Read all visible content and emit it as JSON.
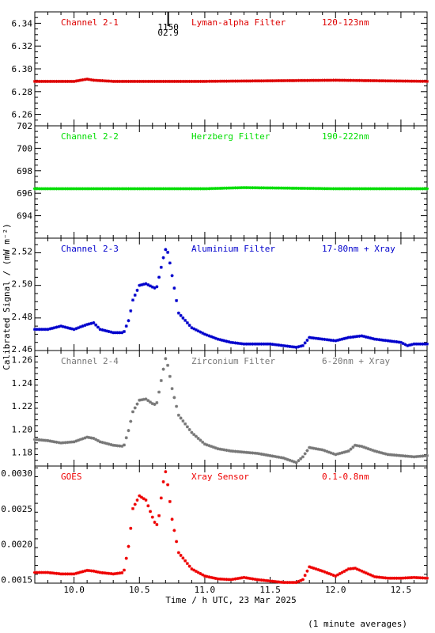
{
  "xlabel": "Time / h UTC, 23 Mar 2025",
  "ylabel": "Calibrated Signal / (mW m⁻²)",
  "footnote": "(1 minute averages)",
  "xlim": [
    9.7,
    12.7
  ],
  "x_ticks": [
    "10.0",
    "10.5",
    "11.0",
    "11.5",
    "12.0",
    "12.5"
  ],
  "marker_note": [
    "1150",
    "02.9"
  ],
  "chart_data": [
    {
      "type": "scatter",
      "color": "#dd0000",
      "labels": {
        "channel": "Channel 2-1",
        "filter": "Lyman-alpha Filter",
        "band": "120-123nm"
      },
      "ylim": [
        6.25,
        6.35
      ],
      "y_ticks": [
        "6.34",
        "6.32",
        "6.30",
        "6.28",
        "6.26"
      ],
      "y_tick_values": [
        6.34,
        6.32,
        6.3,
        6.28,
        6.26
      ],
      "x": [
        9.7,
        10.0,
        10.1,
        10.15,
        10.3,
        11.0,
        12.0,
        12.7
      ],
      "y": [
        6.289,
        6.289,
        6.291,
        6.29,
        6.289,
        6.289,
        6.29,
        6.289
      ]
    },
    {
      "type": "scatter",
      "color": "#00dd00",
      "labels": {
        "channel": "Channel 2-2",
        "filter": "Herzberg Filter",
        "band": "190-222nm"
      },
      "ylim": [
        692,
        702
      ],
      "y_ticks": [
        "702",
        "700",
        "698",
        "696",
        "694"
      ],
      "y_tick_values": [
        702,
        700,
        698,
        696,
        694
      ],
      "x": [
        9.7,
        10.5,
        11.0,
        11.3,
        12.0,
        12.5,
        12.7
      ],
      "y": [
        696.4,
        696.4,
        696.4,
        696.5,
        696.4,
        696.4,
        696.4
      ]
    },
    {
      "type": "scatter",
      "color": "#0000cc",
      "labels": {
        "channel": "Channel 2-3",
        "filter": "Aluminium Filter",
        "band": "17-80nm + Xray"
      },
      "ylim": [
        2.459,
        2.528
      ],
      "y_ticks": [
        "2.52",
        "2.50",
        "2.48",
        "2.46"
      ],
      "y_tick_values": [
        2.52,
        2.5,
        2.48,
        2.46
      ],
      "x": [
        9.7,
        9.8,
        9.9,
        10.0,
        10.1,
        10.15,
        10.2,
        10.3,
        10.38,
        10.42,
        10.45,
        10.5,
        10.55,
        10.6,
        10.63,
        10.65,
        10.68,
        10.7,
        10.72,
        10.75,
        10.8,
        10.9,
        11.0,
        11.1,
        11.2,
        11.3,
        11.4,
        11.5,
        11.6,
        11.7,
        11.75,
        11.8,
        11.9,
        12.0,
        12.1,
        12.2,
        12.3,
        12.4,
        12.5,
        12.55,
        12.6,
        12.7
      ],
      "y": [
        2.472,
        2.472,
        2.474,
        2.472,
        2.475,
        2.476,
        2.472,
        2.47,
        2.47,
        2.478,
        2.49,
        2.499,
        2.5,
        2.498,
        2.497,
        2.504,
        2.515,
        2.521,
        2.519,
        2.505,
        2.482,
        2.473,
        2.469,
        2.466,
        2.464,
        2.463,
        2.463,
        2.463,
        2.462,
        2.461,
        2.462,
        2.467,
        2.466,
        2.465,
        2.467,
        2.468,
        2.466,
        2.465,
        2.464,
        2.462,
        2.463,
        2.463
      ]
    },
    {
      "type": "scatter",
      "color": "#777777",
      "labels": {
        "channel": "Channel 2-4",
        "filter": "Zirconium Filter",
        "band": "6-20nm + Xray"
      },
      "ylim": [
        1.168,
        1.268
      ],
      "y_ticks": [
        "1.26",
        "1.24",
        "1.22",
        "1.20",
        "1.18"
      ],
      "y_tick_values": [
        1.26,
        1.24,
        1.22,
        1.2,
        1.18
      ],
      "x": [
        9.7,
        9.8,
        9.9,
        10.0,
        10.1,
        10.15,
        10.2,
        10.3,
        10.38,
        10.42,
        10.45,
        10.5,
        10.55,
        10.6,
        10.63,
        10.65,
        10.68,
        10.7,
        10.72,
        10.75,
        10.8,
        10.9,
        11.0,
        11.1,
        11.2,
        11.3,
        11.4,
        11.5,
        11.6,
        11.7,
        11.75,
        11.8,
        11.9,
        12.0,
        12.1,
        12.15,
        12.2,
        12.3,
        12.4,
        12.5,
        12.6,
        12.7
      ],
      "y": [
        1.191,
        1.19,
        1.188,
        1.189,
        1.193,
        1.192,
        1.189,
        1.186,
        1.185,
        1.2,
        1.215,
        1.225,
        1.226,
        1.222,
        1.221,
        1.232,
        1.25,
        1.261,
        1.254,
        1.235,
        1.212,
        1.197,
        1.187,
        1.183,
        1.181,
        1.18,
        1.179,
        1.177,
        1.175,
        1.171,
        1.176,
        1.184,
        1.182,
        1.178,
        1.181,
        1.186,
        1.185,
        1.181,
        1.178,
        1.177,
        1.176,
        1.177
      ]
    },
    {
      "type": "scatter",
      "color": "#ee0000",
      "labels": {
        "channel": "GOES",
        "filter": "Xray Sensor",
        "band": "0.1-0.8nm"
      },
      "ylim": [
        0.00145,
        0.0031
      ],
      "y_ticks": [
        "0.0030",
        "0.0025",
        "0.0020",
        "0.0015"
      ],
      "y_tick_values": [
        0.003,
        0.0025,
        0.002,
        0.0015
      ],
      "x": [
        9.7,
        9.8,
        9.9,
        10.0,
        10.1,
        10.15,
        10.2,
        10.3,
        10.38,
        10.42,
        10.45,
        10.5,
        10.55,
        10.6,
        10.63,
        10.65,
        10.68,
        10.7,
        10.72,
        10.75,
        10.8,
        10.9,
        11.0,
        11.1,
        11.2,
        11.3,
        11.4,
        11.5,
        11.6,
        11.7,
        11.75,
        11.8,
        11.9,
        12.0,
        12.1,
        12.15,
        12.2,
        12.3,
        12.4,
        12.5,
        12.6,
        12.7
      ],
      "y": [
        0.0016,
        0.0016,
        0.00158,
        0.00158,
        0.00163,
        0.00162,
        0.0016,
        0.00158,
        0.0016,
        0.002,
        0.0025,
        0.00268,
        0.00262,
        0.00238,
        0.00225,
        0.0024,
        0.00285,
        0.00302,
        0.0028,
        0.00235,
        0.00188,
        0.00165,
        0.00155,
        0.00151,
        0.0015,
        0.00153,
        0.0015,
        0.00148,
        0.00146,
        0.00146,
        0.0015,
        0.00168,
        0.00162,
        0.00155,
        0.00165,
        0.00166,
        0.00162,
        0.00154,
        0.00152,
        0.00152,
        0.00153,
        0.00152
      ]
    }
  ]
}
